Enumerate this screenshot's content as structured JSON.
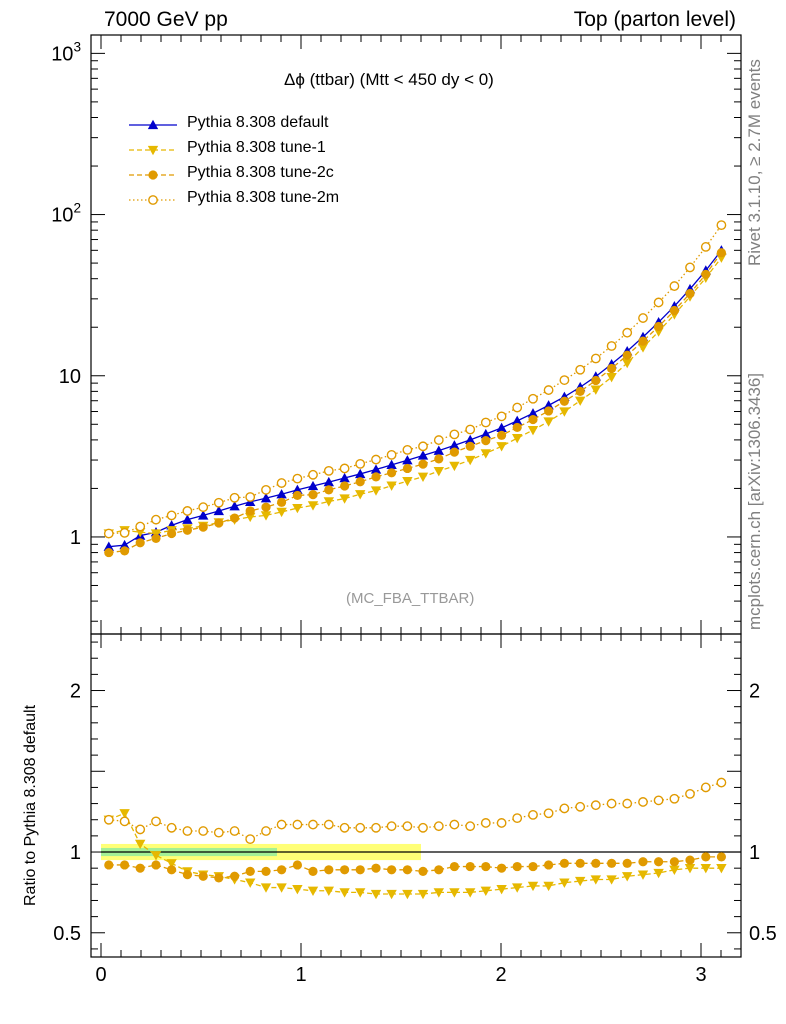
{
  "header": {
    "left_text": "7000 GeV pp",
    "right_text": "Top (parton level)"
  },
  "side_labels": {
    "rivet": "Rivet 3.1.10, ≥ 2.7M events",
    "mcplots": "mcplots.cern.ch [arXiv:1306.3436]"
  },
  "chart_data": [
    {
      "type": "line",
      "title": "Δϕ (ttbar) (Mtt < 450 dy < 0)",
      "watermark": "(MC_FBA_TTBAR)",
      "yscale": "log",
      "xlim": [
        -0.05,
        3.2
      ],
      "ylim": [
        0.25,
        1300
      ],
      "y_ticks": [
        "1",
        "10",
        "10^2",
        "10^3"
      ],
      "x": [
        0.039,
        0.118,
        0.196,
        0.275,
        0.353,
        0.432,
        0.511,
        0.589,
        0.668,
        0.746,
        0.825,
        0.903,
        0.982,
        1.06,
        1.139,
        1.218,
        1.296,
        1.375,
        1.453,
        1.532,
        1.61,
        1.689,
        1.767,
        1.846,
        1.924,
        2.003,
        2.081,
        2.16,
        2.238,
        2.317,
        2.396,
        2.474,
        2.553,
        2.631,
        2.71,
        2.788,
        2.867,
        2.945,
        3.024,
        3.102
      ],
      "series": [
        {
          "name": "Pythia 8.308 default",
          "color": "#0000cc",
          "marker": "triangle-up",
          "line": "solid",
          "values": [
            0.87,
            0.89,
            1.02,
            1.07,
            1.18,
            1.28,
            1.36,
            1.45,
            1.55,
            1.65,
            1.74,
            1.84,
            1.96,
            2.07,
            2.19,
            2.32,
            2.46,
            2.62,
            2.8,
            2.99,
            3.2,
            3.43,
            3.7,
            4.0,
            4.35,
            4.75,
            5.25,
            5.85,
            6.55,
            7.4,
            8.5,
            9.9,
            11.8,
            14.2,
            17.4,
            21.5,
            27.0,
            34.5,
            45.0,
            60.0
          ]
        },
        {
          "name": "Pythia 8.308 tune-1",
          "color": "#e6b800",
          "marker": "triangle-down",
          "line": "dashed",
          "values": [
            1.05,
            1.1,
            1.07,
            1.05,
            1.1,
            1.13,
            1.17,
            1.23,
            1.28,
            1.33,
            1.36,
            1.43,
            1.51,
            1.57,
            1.66,
            1.73,
            1.84,
            1.94,
            2.08,
            2.22,
            2.36,
            2.56,
            2.76,
            3.0,
            3.3,
            3.65,
            4.1,
            4.6,
            5.2,
            6.0,
            7.0,
            8.2,
            9.8,
            12.0,
            15.0,
            18.8,
            24.0,
            31.0,
            40.5,
            54.0
          ]
        },
        {
          "name": "Pythia 8.308 tune-2c",
          "color": "#e09a00",
          "marker": "circle",
          "line": "dashed",
          "values": [
            0.8,
            0.82,
            0.92,
            0.98,
            1.05,
            1.1,
            1.15,
            1.22,
            1.31,
            1.45,
            1.53,
            1.64,
            1.81,
            1.83,
            1.96,
            2.07,
            2.2,
            2.36,
            2.5,
            2.66,
            2.83,
            3.05,
            3.36,
            3.65,
            3.96,
            4.27,
            4.78,
            5.35,
            6.05,
            6.95,
            8.0,
            9.35,
            11.1,
            13.4,
            16.4,
            20.2,
            25.4,
            32.4,
            42.6,
            58.0
          ]
        },
        {
          "name": "Pythia 8.308 tune-2m",
          "color": "#e09a00",
          "marker": "open-circle",
          "line": "dotted",
          "values": [
            1.05,
            1.06,
            1.16,
            1.28,
            1.36,
            1.45,
            1.53,
            1.63,
            1.75,
            1.77,
            1.96,
            2.16,
            2.3,
            2.43,
            2.57,
            2.66,
            2.84,
            3.02,
            3.23,
            3.47,
            3.65,
            3.99,
            4.33,
            4.64,
            5.13,
            5.6,
            6.35,
            7.2,
            8.15,
            9.4,
            10.9,
            12.8,
            15.3,
            18.5,
            22.8,
            28.5,
            36.0,
            47.0,
            63.0,
            86.0
          ]
        }
      ]
    },
    {
      "type": "line",
      "ylabel": "Ratio to Pythia 8.308 default",
      "xlim": [
        -0.05,
        3.2
      ],
      "ylim": [
        0.35,
        2.35
      ],
      "x_ticks": [
        "0",
        "1",
        "2",
        "3"
      ],
      "y_ticks": [
        "0.5",
        "1",
        "2"
      ],
      "reference_band": {
        "lower": 0.95,
        "upper": 1.05,
        "until_x": 1.6
      },
      "series": [
        {
          "name": "Pythia 8.308 tune-1",
          "color": "#e6b800",
          "marker": "triangle-down",
          "line": "dashed",
          "values": [
            1.2,
            1.24,
            1.05,
            0.98,
            0.93,
            0.88,
            0.86,
            0.85,
            0.83,
            0.81,
            0.78,
            0.78,
            0.77,
            0.76,
            0.76,
            0.75,
            0.75,
            0.74,
            0.74,
            0.74,
            0.74,
            0.75,
            0.75,
            0.75,
            0.76,
            0.77,
            0.78,
            0.79,
            0.79,
            0.81,
            0.82,
            0.83,
            0.83,
            0.85,
            0.86,
            0.87,
            0.89,
            0.9,
            0.9,
            0.9
          ]
        },
        {
          "name": "Pythia 8.308 tune-2c",
          "color": "#e09a00",
          "marker": "circle",
          "line": "dashed",
          "values": [
            0.92,
            0.92,
            0.9,
            0.92,
            0.89,
            0.86,
            0.85,
            0.84,
            0.85,
            0.88,
            0.88,
            0.89,
            0.92,
            0.88,
            0.89,
            0.89,
            0.89,
            0.9,
            0.89,
            0.89,
            0.88,
            0.89,
            0.91,
            0.91,
            0.91,
            0.9,
            0.91,
            0.91,
            0.92,
            0.93,
            0.93,
            0.93,
            0.93,
            0.93,
            0.94,
            0.94,
            0.94,
            0.95,
            0.97,
            0.97
          ]
        },
        {
          "name": "Pythia 8.308 tune-2m",
          "color": "#e09a00",
          "marker": "open-circle",
          "line": "dotted",
          "values": [
            1.2,
            1.19,
            1.14,
            1.19,
            1.15,
            1.13,
            1.13,
            1.12,
            1.13,
            1.08,
            1.13,
            1.17,
            1.17,
            1.17,
            1.17,
            1.15,
            1.15,
            1.15,
            1.16,
            1.16,
            1.15,
            1.16,
            1.17,
            1.16,
            1.18,
            1.18,
            1.21,
            1.23,
            1.24,
            1.27,
            1.28,
            1.29,
            1.3,
            1.3,
            1.31,
            1.32,
            1.33,
            1.36,
            1.4,
            1.43
          ]
        }
      ]
    }
  ]
}
